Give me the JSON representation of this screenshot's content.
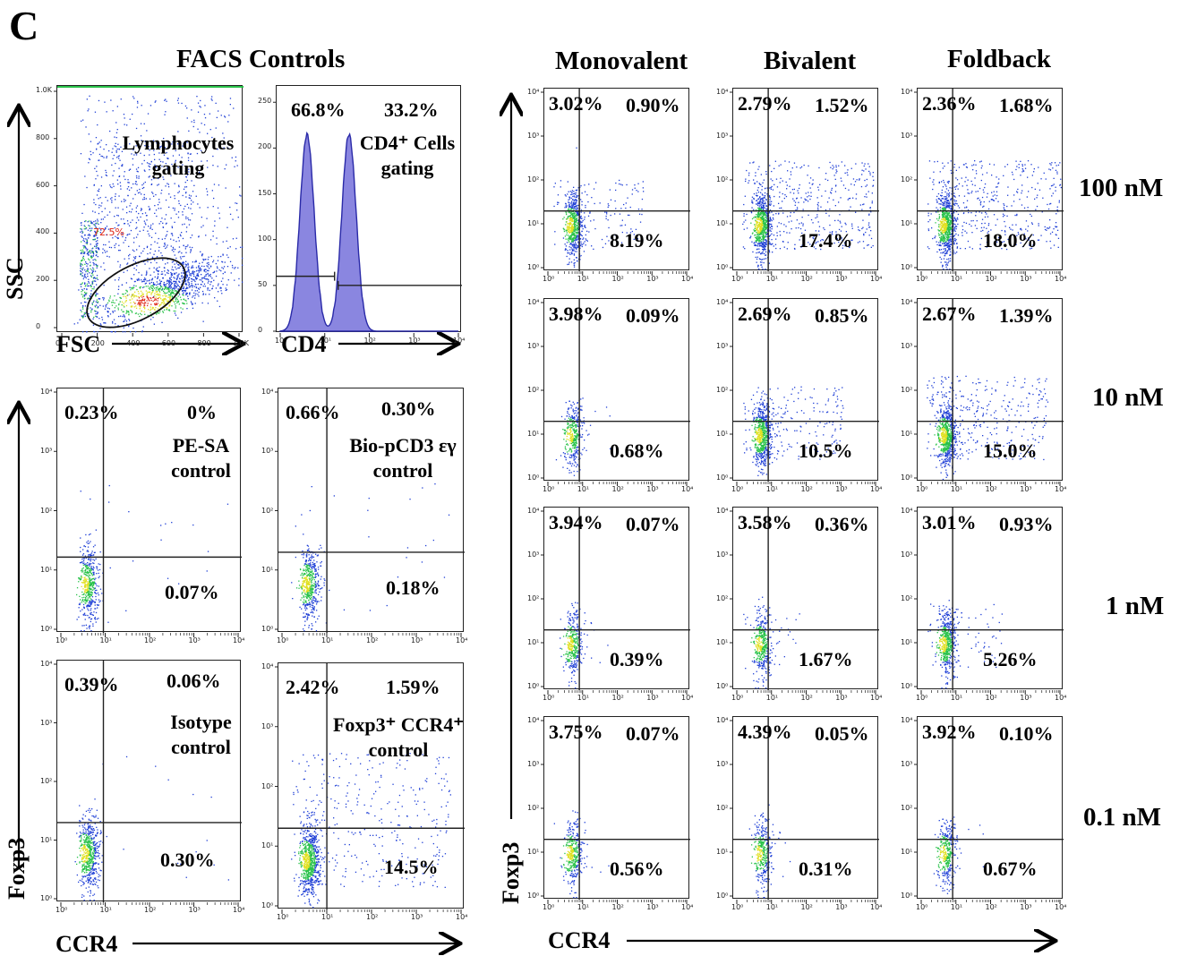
{
  "panel_letter": "C",
  "headers": {
    "facs_controls": "FACS Controls",
    "monovalent": "Monovalent",
    "bivalent": "Bivalent",
    "foldback": "Foldback"
  },
  "axis_labels": {
    "ssc": "SSC",
    "fsc": "FSC",
    "cd4": "CD4",
    "foxp3_left": "Foxp3",
    "ccr4_left": "CCR4",
    "foxp3_right": "Foxp3",
    "ccr4_right": "CCR4"
  },
  "concentrations": [
    "100 nM",
    "10 nM",
    "1 nM",
    "0.1 nM"
  ],
  "chart_data": [
    {
      "type": "scatter",
      "panel": "lymphocyte-gating",
      "xlabel": "FSC",
      "ylabel": "SSC",
      "xlim": [
        0,
        1000
      ],
      "ylim": [
        0,
        1000
      ],
      "x_ticks": [
        "0",
        "200",
        "400",
        "600",
        "800",
        "1.0K"
      ],
      "y_ticks": [
        "0",
        "200",
        "400",
        "600",
        "800",
        "1.0K"
      ],
      "annotation_line1": "Lymphocytes",
      "annotation_line2": "gating",
      "gate_percent": "72.5%"
    },
    {
      "type": "area",
      "panel": "cd4-histogram",
      "xlabel": "CD4",
      "x_scale": "log",
      "x_ticks": [
        "10⁰",
        "10¹",
        "10²",
        "10³",
        "10⁴"
      ],
      "y_ticks": [
        "0",
        "50",
        "100",
        "150",
        "200",
        "250"
      ],
      "ylim": [
        0,
        260
      ],
      "peaks": [
        {
          "x": 4,
          "y": 215
        },
        {
          "x": 35,
          "y": 215
        }
      ],
      "left_percent": "66.8%",
      "right_percent": "33.2%",
      "annotation_line1": "CD4⁺ Cells",
      "annotation_line2": "gating"
    }
  ],
  "control_plots": [
    {
      "UL": "0.23%",
      "UR": "0%",
      "LR": "0.07%",
      "line1": "PE-SA",
      "line2": "control"
    },
    {
      "UL": "0.66%",
      "UR": "0.30%",
      "LR": "0.18%",
      "line1": "Bio-pCD3 εγ",
      "line2": "control"
    },
    {
      "UL": "0.39%",
      "UR": "0.06%",
      "LR": "0.30%",
      "line1": "Isotype",
      "line2": "control"
    },
    {
      "UL": "2.42%",
      "UR": "1.59%",
      "LR": "14.5%",
      "line1": "Foxp3⁺ CCR4⁺",
      "line2": "control"
    }
  ],
  "grid_plots": [
    [
      {
        "UL": "3.02%",
        "UR": "0.90%",
        "LR": "8.19%"
      },
      {
        "UL": "2.79%",
        "UR": "1.52%",
        "LR": "17.4%"
      },
      {
        "UL": "2.36%",
        "UR": "1.68%",
        "LR": "18.0%"
      }
    ],
    [
      {
        "UL": "3.98%",
        "UR": "0.09%",
        "LR": "0.68%"
      },
      {
        "UL": "2.69%",
        "UR": "0.85%",
        "LR": "10.5%"
      },
      {
        "UL": "2.67%",
        "UR": "1.39%",
        "LR": "15.0%"
      }
    ],
    [
      {
        "UL": "3.94%",
        "UR": "0.07%",
        "LR": "0.39%"
      },
      {
        "UL": "3.58%",
        "UR": "0.36%",
        "LR": "1.67%"
      },
      {
        "UL": "3.01%",
        "UR": "0.93%",
        "LR": "5.26%"
      }
    ],
    [
      {
        "UL": "3.75%",
        "UR": "0.07%",
        "LR": "0.56%"
      },
      {
        "UL": "4.39%",
        "UR": "0.05%",
        "LR": "0.31%"
      },
      {
        "UL": "3.92%",
        "UR": "0.10%",
        "LR": "0.67%"
      }
    ]
  ],
  "log_ticks": [
    "10⁰",
    "10¹",
    "10²",
    "10³",
    "10⁴"
  ],
  "colors": {
    "dots": "#1f3fd6",
    "dense": "#29c24a",
    "hot": "#e0e020",
    "histogram": "#8a86e0",
    "histogram_line": "#2a2aa8",
    "gate": "#d21111"
  }
}
